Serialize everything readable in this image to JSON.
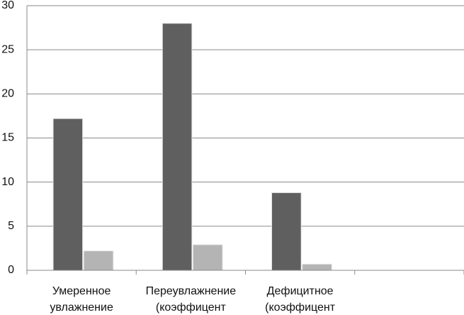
{
  "chart_data": {
    "type": "bar",
    "categories": [
      "Умеренное увлажнение",
      "Переувлажнение (коэффицент",
      "Дефицитное (коэффицент",
      null
    ],
    "series": [
      {
        "color": "#5f5f5f",
        "values": [
          17.2,
          28,
          8.8,
          null
        ]
      },
      {
        "color": "#b4b4b4",
        "values": [
          2.2,
          2.9,
          0.7,
          null
        ]
      }
    ],
    "ylim": [
      0,
      30
    ],
    "yticks": [
      0,
      5,
      10,
      15,
      20,
      25,
      30
    ],
    "grid": true
  }
}
